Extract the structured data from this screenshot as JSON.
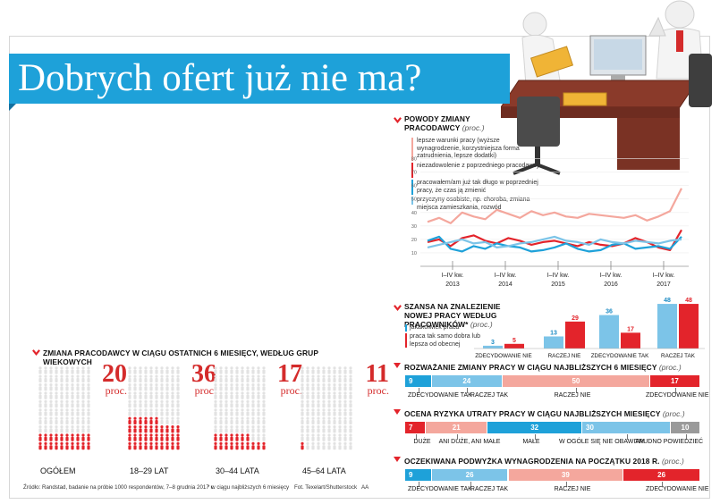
{
  "title": "Dobrych ofert już nie ma?",
  "colors": {
    "blue": "#1ea1d9",
    "red": "#e3242b",
    "light_red": "#f4a79d",
    "light_blue": "#7cc4e8",
    "gray": "#9a9a9a",
    "dark_red": "#c9211e"
  },
  "age_groups": {
    "title": "Zmiana pracodawcy w ciągu ostatnich 6 miesięcy, według grup wiekowych",
    "unit": "proc.",
    "groups": [
      {
        "label": "OGÓŁEM",
        "value": 20
      },
      {
        "label": "18–29 LAT",
        "value": 36
      },
      {
        "label": "30–44 LATA",
        "value": 17
      },
      {
        "label": "45–64 LATA",
        "value": 11
      }
    ]
  },
  "reasons": {
    "title": "Powody zmiany pracodawcy",
    "unit": "(proc.)",
    "chart_data": {
      "type": "line",
      "x_labels": [
        {
          "l1": "I–IV kw.",
          "l2": "2013"
        },
        {
          "l1": "I–IV kw.",
          "l2": "2014"
        },
        {
          "l1": "I–IV kw.",
          "l2": "2015"
        },
        {
          "l1": "I–IV kw.",
          "l2": "2016"
        },
        {
          "l1": "I–IV kw.",
          "l2": "2017"
        }
      ],
      "y_ticks": [
        10,
        20,
        30,
        40,
        50,
        60,
        70,
        80
      ],
      "ylim": [
        0,
        85
      ],
      "series": [
        {
          "name": "lepsze warunki pracy (wyższe wynagrodzenie, korzystniejsza forma zatrudnienia, lepsze dodatki)",
          "color": "#f4a79d",
          "values": [
            33,
            36,
            32,
            40,
            37,
            35,
            42,
            39,
            36,
            41,
            38,
            40,
            37,
            36,
            39,
            38,
            37,
            36,
            38,
            34,
            37,
            41,
            58
          ]
        },
        {
          "name": "niezadowolenie z poprzedniego pracodawcy",
          "color": "#e3242b",
          "values": [
            18,
            20,
            15,
            21,
            23,
            19,
            17,
            21,
            19,
            16,
            18,
            19,
            17,
            15,
            18,
            16,
            15,
            17,
            21,
            18,
            14,
            12,
            27
          ]
        },
        {
          "name": "pracowałem/am już tak długo w poprzedniej pracy, że czas ją zmienić",
          "color": "#1ea1d9",
          "values": [
            19,
            22,
            13,
            11,
            15,
            13,
            17,
            15,
            14,
            11,
            12,
            14,
            17,
            13,
            11,
            12,
            16,
            17,
            13,
            14,
            15,
            13,
            22
          ]
        },
        {
          "name": "przyczyny osobiste, np. choroba, zmiana miejsca zamieszkania, rozwód",
          "color": "#7cc4e8",
          "values": [
            14,
            16,
            18,
            20,
            17,
            18,
            14,
            15,
            17,
            18,
            20,
            22,
            19,
            18,
            16,
            20,
            18,
            17,
            19,
            18,
            17,
            19,
            20
          ]
        }
      ]
    }
  },
  "chance": {
    "title": "Szansa na znalezienie nowej pracy według pracowników*",
    "unit": "(proc.)",
    "legend": [
      "jakakolwiek praca",
      "praca tak samo dobra lub lepsza od obecnej"
    ],
    "chart_data": {
      "type": "bar",
      "categories": [
        "ZDECYDOWANIE NIE",
        "RACZEJ NIE",
        "ZDECYDOWANIE TAK",
        "RACZEJ TAK"
      ],
      "series": [
        {
          "name": "jakakolwiek praca",
          "values": [
            3,
            13,
            36,
            48
          ]
        },
        {
          "name": "praca tak samo dobra lub lepsza od obecnej",
          "values": [
            5,
            29,
            17,
            48
          ]
        }
      ],
      "ylim": [
        0,
        50
      ]
    }
  },
  "considering": {
    "title": "Rozważanie zmiany pracy w ciągu najbliższych 6 miesięcy",
    "unit": "(proc.)",
    "chart_data": {
      "type": "bar",
      "stacked": true,
      "values": [
        9,
        24,
        50,
        17
      ],
      "labels": [
        "ZDECYDOWANIE TAK",
        "RACZEJ TAK",
        "RACZEJ NIE",
        "ZDECYDOWANIE NIE"
      ]
    }
  },
  "risk": {
    "title": "Ocena ryzyka utraty pracy w ciągu najbliższych miesięcy",
    "unit": "(proc.)",
    "chart_data": {
      "type": "bar",
      "stacked": true,
      "values": [
        7,
        21,
        32,
        30,
        10
      ],
      "labels": [
        "DUŻE",
        "ANI DUŻE, ANI MAŁE",
        "MAŁE",
        "W OGÓLE SIĘ NIE OBAWIAM",
        "TRUDNO POWIEDZIEĆ"
      ]
    }
  },
  "raise": {
    "title": "Oczekiwana podwyżka wynagrodzenia na początku 2018 r.",
    "unit": "(proc.)",
    "chart_data": {
      "type": "bar",
      "stacked": true,
      "values": [
        9,
        26,
        39,
        26
      ],
      "labels": [
        "ZDECYDOWANIE TAK",
        "RACZEJ TAK",
        "RACZEJ NIE",
        "ZDECYDOWANIE NIE"
      ]
    }
  },
  "footer": {
    "source": "Źródło: Randstad, badanie na próbie 1000 respondentów, 7–8 grudnia 2017 r.",
    "note": "* w ciągu najbliższych 6 miesięcy",
    "photo": "Fot. Texelart/Shutterstock",
    "tag": "AA"
  }
}
